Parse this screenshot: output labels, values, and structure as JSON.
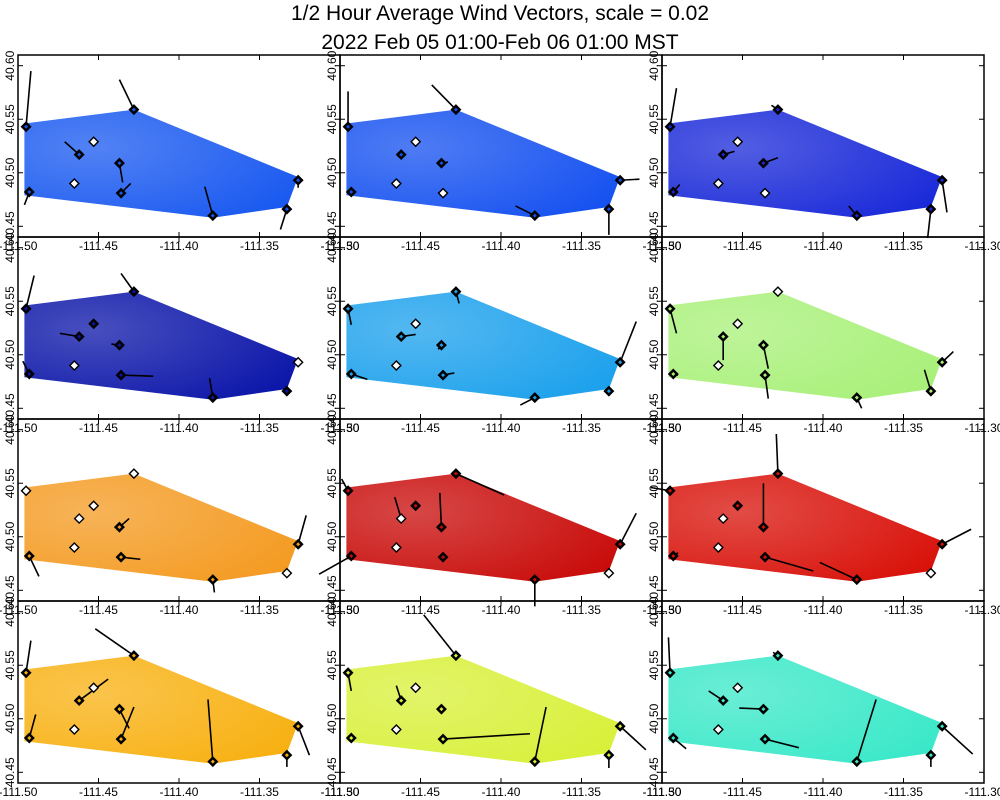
{
  "chart_data": {
    "type": "vector-map-grid",
    "title": "1/2 Hour Average Wind Vectors, scale =  0.02",
    "subtitle": "2022 Feb 05 01:00-Feb 06 01:00 MST",
    "x_ticks": [
      "-111.50",
      "-111.45",
      "-111.40",
      "-111.35",
      "-111.30"
    ],
    "y_ticks": [
      "40.45",
      "40.50",
      "40.55",
      "40.60"
    ],
    "xlim": [
      -111.5,
      -111.3
    ],
    "ylim": [
      40.44,
      40.61
    ],
    "stations": [
      {
        "lon": -111.495,
        "lat": 40.543
      },
      {
        "lon": -111.493,
        "lat": 40.482
      },
      {
        "lon": -111.465,
        "lat": 40.49
      },
      {
        "lon": -111.462,
        "lat": 40.517
      },
      {
        "lon": -111.453,
        "lat": 40.529
      },
      {
        "lon": -111.437,
        "lat": 40.509
      },
      {
        "lon": -111.436,
        "lat": 40.481
      },
      {
        "lon": -111.428,
        "lat": 40.559
      },
      {
        "lon": -111.379,
        "lat": 40.46
      },
      {
        "lon": -111.333,
        "lat": 40.466
      },
      {
        "lon": -111.326,
        "lat": 40.493
      }
    ],
    "panels": [
      {
        "field": "#1858f0",
        "vectors": [
          [
            0.003,
            0.052
          ],
          [
            -0.003,
            -0.012
          ],
          [
            0,
            0
          ],
          [
            -0.009,
            0.012
          ],
          [
            0,
            0
          ],
          [
            0.002,
            -0.018
          ],
          [
            0.006,
            0.009
          ],
          [
            -0.009,
            0.028
          ],
          [
            -0.005,
            0.027
          ],
          [
            -0.004,
            -0.019
          ],
          [
            0,
            -0.007
          ]
        ],
        "hollow": [
          4,
          2
        ]
      },
      {
        "field": "#1450f0",
        "vectors": [
          [
            0,
            0.033
          ],
          [
            0,
            -0.004
          ],
          [
            0,
            0
          ],
          [
            0,
            0
          ],
          [
            0,
            0
          ],
          [
            0.004,
            0.001
          ],
          [
            0,
            0
          ],
          [
            -0.015,
            0.023
          ],
          [
            -0.012,
            0.009
          ],
          [
            0,
            -0.024
          ],
          [
            0.012,
            0.001
          ]
        ],
        "hollow": [
          4,
          2,
          6
        ]
      },
      {
        "field": "#1828d8",
        "vectors": [
          [
            0.004,
            0.036
          ],
          [
            0.004,
            0.007
          ],
          [
            0,
            0
          ],
          [
            0.007,
            0.003
          ],
          [
            0,
            0
          ],
          [
            0.009,
            0.005
          ],
          [
            0,
            0
          ],
          [
            -0.004,
            0.004
          ],
          [
            -0.005,
            0.009
          ],
          [
            -0.002,
            -0.027
          ],
          [
            0.003,
            -0.03
          ]
        ],
        "hollow": [
          4,
          2,
          6
        ]
      },
      {
        "field": "#0a14a8",
        "vectors": [
          [
            0.005,
            0.031
          ],
          [
            -0.004,
            0.012
          ],
          [
            0,
            0
          ],
          [
            -0.012,
            0.003
          ],
          [
            0,
            0
          ],
          [
            -0.005,
            0.001
          ],
          [
            0.02,
            -0.001
          ],
          [
            -0.008,
            0.017
          ],
          [
            -0.002,
            0.018
          ],
          [
            0,
            0
          ],
          [
            0,
            0
          ]
        ],
        "hollow": [
          2,
          10
        ]
      },
      {
        "field": "#1aa0ec",
        "vectors": [
          [
            0.002,
            -0.015
          ],
          [
            0.01,
            -0.005
          ],
          [
            0,
            0
          ],
          [
            0.009,
            0.002
          ],
          [
            0,
            0
          ],
          [
            -0.002,
            -0.004
          ],
          [
            0.007,
            0.002
          ],
          [
            0.002,
            -0.011
          ],
          [
            -0.009,
            -0.007
          ],
          [
            0,
            0
          ],
          [
            0.01,
            0.038
          ]
        ],
        "hollow": [
          2,
          4
        ]
      },
      {
        "field": "#a8f078",
        "vectors": [
          [
            0.004,
            -0.023
          ],
          [
            0.003,
            -0.001
          ],
          [
            0,
            0
          ],
          [
            0,
            -0.022
          ],
          [
            0,
            0
          ],
          [
            0.003,
            -0.022
          ],
          [
            0.002,
            -0.022
          ],
          [
            0,
            0
          ],
          [
            0.003,
            -0.01
          ],
          [
            -0.004,
            0.02
          ],
          [
            0.007,
            0.01
          ]
        ],
        "hollow": [
          2,
          7,
          4
        ]
      },
      {
        "field": "#f49a20",
        "vectors": [
          [
            0,
            0
          ],
          [
            0.006,
            -0.019
          ],
          [
            0,
            0
          ],
          [
            0,
            0
          ],
          [
            0,
            0
          ],
          [
            0.006,
            0.008
          ],
          [
            0.012,
            -0.002
          ],
          [
            0,
            0
          ],
          [
            0.001,
            -0.012
          ],
          [
            0,
            0
          ],
          [
            0.005,
            0.027
          ]
        ],
        "hollow": [
          0,
          3,
          2,
          4,
          7,
          9
        ]
      },
      {
        "field": "#c80a08",
        "vectors": [
          [
            -0.004,
            0.011
          ],
          [
            -0.02,
            -0.017
          ],
          [
            0,
            0
          ],
          [
            -0.004,
            0.02
          ],
          [
            0,
            0
          ],
          [
            -0.001,
            0.032
          ],
          [
            0,
            0
          ],
          [
            0.03,
            -0.02
          ],
          [
            0,
            -0.025
          ],
          [
            0,
            0
          ],
          [
            0.01,
            0.029
          ]
        ],
        "hollow": [
          2,
          3,
          9
        ]
      },
      {
        "field": "#d81008",
        "vectors": [
          [
            -0.012,
            0.003
          ],
          [
            0.003,
            0.003
          ],
          [
            0,
            0
          ],
          [
            0,
            0
          ],
          [
            0,
            0
          ],
          [
            0,
            0.041
          ],
          [
            0.03,
            -0.013
          ],
          [
            -0.001,
            0.037
          ],
          [
            -0.023,
            0.016
          ],
          [
            0,
            0
          ],
          [
            0.018,
            0.014
          ]
        ],
        "hollow": [
          2,
          3,
          9
        ]
      }
    ]
  },
  "wind_panels_extra": [
    {
      "field": "#f8b010",
      "vectors": [
        [
          0.003,
          0.03
        ],
        [
          0.004,
          0.022
        ],
        [
          0,
          0
        ],
        [
          0.018,
          0.02
        ],
        [
          0,
          0
        ],
        [
          0.006,
          -0.018
        ],
        [
          0.008,
          0.03
        ],
        [
          -0.024,
          0.025
        ],
        [
          -0.003,
          0.058
        ],
        [
          0,
          -0.011
        ],
        [
          0.007,
          -0.027
        ]
      ],
      "hollow": [
        2,
        4
      ]
    },
    {
      "field": "#d8f038",
      "vectors": [
        [
          0.002,
          -0.017
        ],
        [
          0,
          0
        ],
        [
          0,
          0
        ],
        [
          -0.003,
          0.014
        ],
        [
          0,
          0
        ],
        [
          0,
          0
        ],
        [
          0.054,
          0.005
        ],
        [
          -0.02,
          0.038
        ],
        [
          0.007,
          0.051
        ],
        [
          0,
          -0.012
        ],
        [
          0.016,
          -0.022
        ]
      ],
      "hollow": [
        2,
        4
      ]
    },
    {
      "field": "#38e8c8",
      "vectors": [
        [
          -0.001,
          0.033
        ],
        [
          0.008,
          -0.01
        ],
        [
          0,
          0
        ],
        [
          -0.009,
          0.009
        ],
        [
          0,
          0
        ],
        [
          -0.015,
          0.001
        ],
        [
          0.021,
          -0.008
        ],
        [
          -0.003,
          0.003
        ],
        [
          0.012,
          0.058
        ],
        [
          0,
          -0.011
        ],
        [
          0.019,
          -0.026
        ]
      ],
      "hollow": [
        2,
        4
      ]
    }
  ]
}
